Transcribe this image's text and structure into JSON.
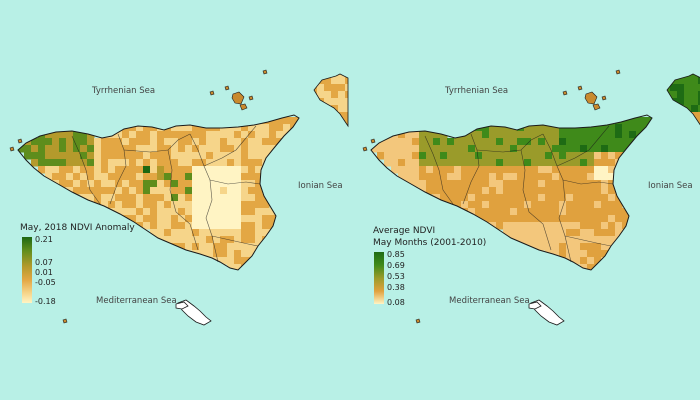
{
  "colors": {
    "sea": "#b8f0e6",
    "outline": "#1a1a1a",
    "anomaly_ramp": [
      "#fff4c4",
      "#f6d58a",
      "#e3a744",
      "#b49a2c",
      "#5e8d1c",
      "#1d6812"
    ],
    "average_ramp": [
      "#fff4c4",
      "#f3c77c",
      "#e0a13e",
      "#9a9b2a",
      "#3f8a1a",
      "#1e6b14"
    ]
  },
  "left_map": {
    "sea_labels": {
      "north": "Tyrrhenian Sea",
      "east": "Ionian Sea",
      "south": "Mediterranean Sea"
    },
    "legend": {
      "title_line1": "May, 2018 NDVI Anomaly",
      "ticks": [
        "0.21",
        "0.07",
        "0.01",
        "-0.05",
        "-0.18"
      ]
    }
  },
  "right_map": {
    "sea_labels": {
      "north": "Tyrrhenian Sea",
      "east": "Ionian Sea",
      "south": "Mediterranean Sea"
    },
    "legend": {
      "title_line1": "Average NDVI",
      "title_line2": "May Months (2001-2010)",
      "ticks": [
        "0.85",
        "0.69",
        "0.53",
        "0.38",
        "0.08"
      ]
    }
  }
}
